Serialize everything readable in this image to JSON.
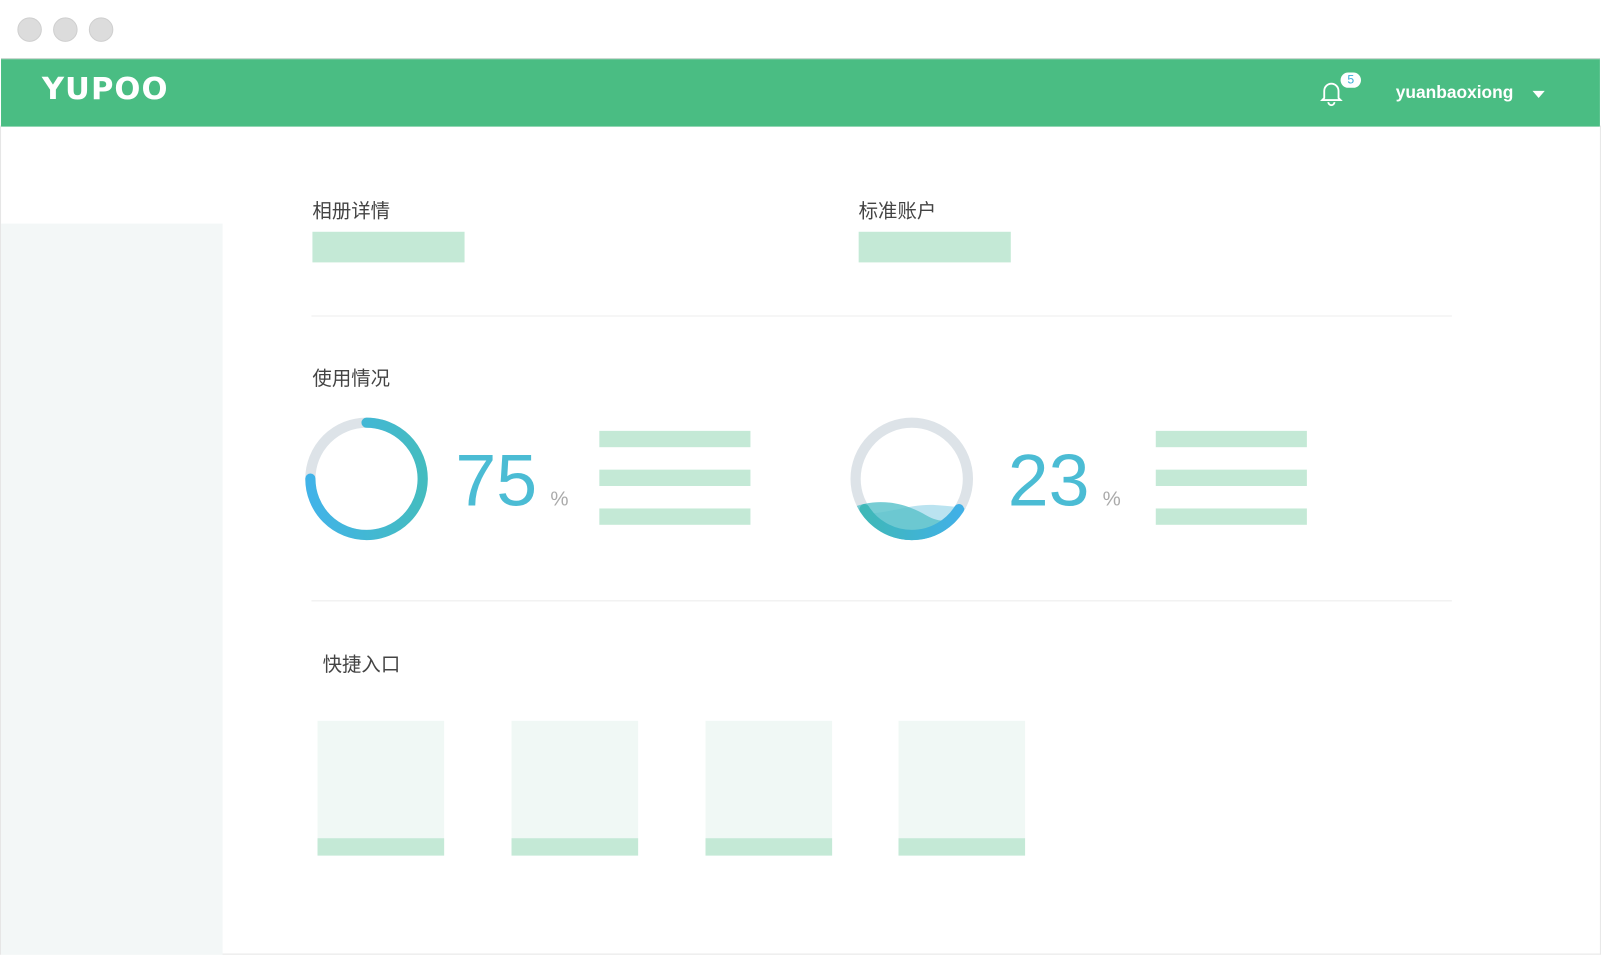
{
  "window": {
    "controls": [
      "close",
      "minimize",
      "maximize"
    ]
  },
  "header": {
    "logo": "YUPOO",
    "notification_count": "5",
    "username": "yuanbaoxiong",
    "color": "#4abd83"
  },
  "sections": {
    "album_details": "相册详情",
    "standard_account": "标准账户",
    "usage": "使用情况",
    "shortcuts": "快捷入口"
  },
  "usage": [
    {
      "value": "75",
      "unit": "%",
      "fraction": 0.75,
      "style": "ring"
    },
    {
      "value": "23",
      "unit": "%",
      "fraction": 0.23,
      "style": "water"
    }
  ],
  "shortcut_count": 4,
  "colors": {
    "accent": "#4bbcd4",
    "placeholder": "#c4e9d6",
    "sidebar": "#f3f7f7"
  }
}
